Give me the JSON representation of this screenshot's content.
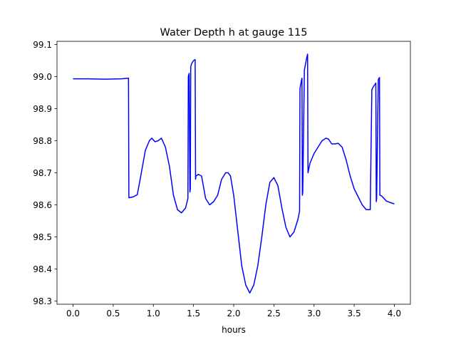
{
  "chart_data": {
    "type": "line",
    "title": "Water Depth h at gauge 115",
    "xlabel": "hours",
    "ylabel": "",
    "xlim": [
      -0.2,
      4.2
    ],
    "ylim": [
      98.29,
      99.11
    ],
    "grid": false,
    "xticks": [
      0.0,
      0.5,
      1.0,
      1.5,
      2.0,
      2.5,
      3.0,
      3.5,
      4.0
    ],
    "xtick_labels": [
      "0.0",
      "0.5",
      "1.0",
      "1.5",
      "2.0",
      "2.5",
      "3.0",
      "3.5",
      "4.0"
    ],
    "yticks": [
      98.3,
      98.4,
      98.5,
      98.6,
      98.7,
      98.8,
      98.9,
      99.0,
      99.1
    ],
    "ytick_labels": [
      "98.3",
      "98.4",
      "98.5",
      "98.6",
      "98.7",
      "98.8",
      "98.9",
      "99.0",
      "99.1"
    ],
    "series": [
      {
        "color": "#0000ff",
        "x": [
          0.0,
          0.2,
          0.4,
          0.6,
          0.69,
          0.695,
          0.75,
          0.8,
          0.85,
          0.9,
          0.95,
          0.98,
          1.02,
          1.06,
          1.1,
          1.15,
          1.2,
          1.25,
          1.3,
          1.35,
          1.4,
          1.43,
          1.435,
          1.445,
          1.455,
          1.46,
          1.465,
          1.475,
          1.5,
          1.52,
          1.525,
          1.53,
          1.56,
          1.6,
          1.65,
          1.7,
          1.75,
          1.8,
          1.85,
          1.9,
          1.93,
          1.96,
          2.0,
          2.05,
          2.1,
          2.15,
          2.2,
          2.25,
          2.3,
          2.35,
          2.4,
          2.45,
          2.5,
          2.55,
          2.6,
          2.65,
          2.7,
          2.75,
          2.8,
          2.82,
          2.825,
          2.83,
          2.845,
          2.85,
          2.855,
          2.86,
          2.88,
          2.91,
          2.92,
          2.925,
          2.95,
          3.0,
          3.05,
          3.1,
          3.15,
          3.18,
          3.22,
          3.26,
          3.3,
          3.35,
          3.4,
          3.45,
          3.5,
          3.55,
          3.6,
          3.65,
          3.7,
          3.72,
          3.725,
          3.73,
          3.77,
          3.775,
          3.78,
          3.8,
          3.81,
          3.815,
          3.82,
          3.84,
          3.86,
          3.9,
          3.95,
          4.0
        ],
        "y": [
          98.993,
          98.993,
          98.992,
          98.993,
          98.995,
          98.622,
          98.625,
          98.632,
          98.7,
          98.77,
          98.8,
          98.808,
          98.797,
          98.8,
          98.808,
          98.78,
          98.72,
          98.63,
          98.585,
          98.575,
          98.59,
          98.62,
          99.0,
          99.01,
          98.64,
          98.65,
          99.03,
          99.04,
          99.05,
          99.053,
          98.68,
          98.69,
          98.695,
          98.69,
          98.62,
          98.6,
          98.61,
          98.63,
          98.68,
          98.7,
          98.7,
          98.69,
          98.63,
          98.52,
          98.41,
          98.35,
          98.325,
          98.35,
          98.41,
          98.5,
          98.6,
          98.67,
          98.685,
          98.66,
          98.59,
          98.53,
          98.5,
          98.515,
          98.555,
          98.58,
          98.96,
          98.97,
          98.99,
          98.995,
          98.63,
          98.64,
          99.02,
          99.06,
          99.07,
          98.7,
          98.73,
          98.76,
          98.78,
          98.8,
          98.808,
          98.805,
          98.79,
          98.79,
          98.792,
          98.78,
          98.74,
          98.69,
          98.65,
          98.625,
          98.6,
          98.585,
          98.585,
          98.96,
          98.96,
          98.965,
          98.98,
          98.61,
          98.62,
          98.99,
          98.995,
          98.997,
          98.63,
          98.628,
          98.623,
          98.612,
          98.607,
          98.603
        ]
      }
    ]
  }
}
